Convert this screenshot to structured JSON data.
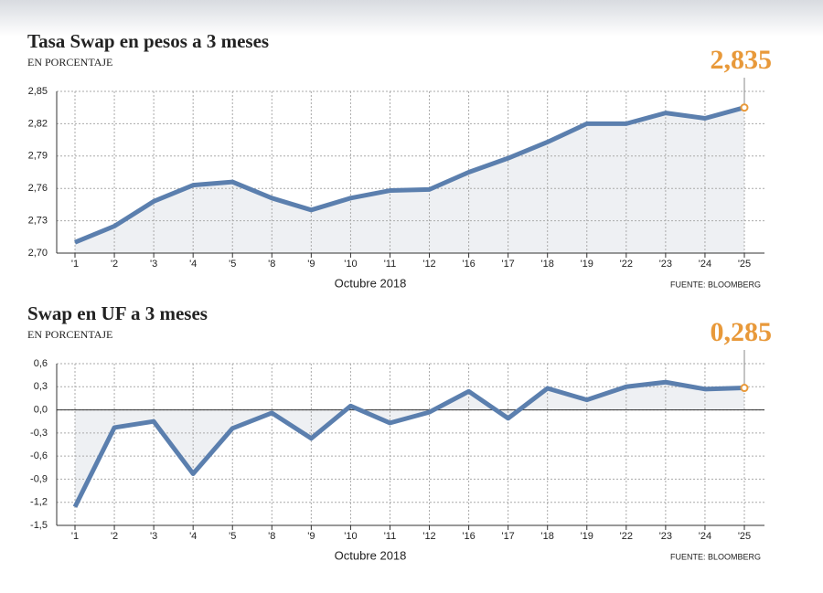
{
  "chart_data": [
    {
      "type": "line",
      "title": "Tasa Swap en pesos a 3 meses",
      "subtitle": "EN PORCENTAJE",
      "categories": [
        "'1",
        "'2",
        "'3",
        "'4",
        "'5",
        "'8",
        "'9",
        "'10",
        "'11",
        "'12",
        "'16",
        "'17",
        "'18",
        "'19",
        "'22",
        "'23",
        "'24",
        "'25"
      ],
      "values": [
        2.71,
        2.725,
        2.748,
        2.763,
        2.766,
        2.751,
        2.74,
        2.751,
        2.758,
        2.759,
        2.775,
        2.788,
        2.803,
        2.82,
        2.82,
        2.83,
        2.825,
        2.835
      ],
      "value_labels": [
        null,
        null,
        null,
        null,
        null,
        null,
        null,
        null,
        null,
        null,
        null,
        null,
        null,
        null,
        null,
        null,
        null,
        "2,835"
      ],
      "color": "#5b7fae",
      "xlabel": "Octubre 2018",
      "source": "FUENTE: BLOOMBERG",
      "ylim": [
        2.7,
        2.85
      ],
      "yticks": [
        {
          "value": 2.7,
          "label": "2,70"
        },
        {
          "value": 2.73,
          "label": "2,73"
        },
        {
          "value": 2.76,
          "label": "2,76"
        },
        {
          "value": 2.79,
          "label": "2,79"
        },
        {
          "value": 2.82,
          "label": "2,82"
        },
        {
          "value": 2.85,
          "label": "2,85"
        }
      ],
      "grid": true
    },
    {
      "type": "line",
      "title": "Swap en UF a 3 meses",
      "subtitle": "EN PORCENTAJE",
      "categories": [
        "'1",
        "'2",
        "'3",
        "'4",
        "'5",
        "'8",
        "'9",
        "'10",
        "'11",
        "'12",
        "'16",
        "'17",
        "'18",
        "'19",
        "'22",
        "'23",
        "'24",
        "'25"
      ],
      "values": [
        -1.26,
        -0.23,
        -0.15,
        -0.83,
        -0.24,
        -0.04,
        -0.37,
        0.05,
        -0.17,
        -0.03,
        0.24,
        -0.11,
        0.28,
        0.13,
        0.3,
        0.36,
        0.27,
        0.285
      ],
      "value_labels": [
        null,
        null,
        null,
        null,
        null,
        null,
        null,
        null,
        null,
        null,
        null,
        null,
        null,
        null,
        null,
        null,
        null,
        "0,285"
      ],
      "color": "#5b7fae",
      "xlabel": "Octubre 2018",
      "source": "FUENTE: BLOOMBERG",
      "ylim": [
        -1.5,
        0.6
      ],
      "yticks": [
        {
          "value": -1.5,
          "label": "-1,5"
        },
        {
          "value": -1.2,
          "label": "-1,2"
        },
        {
          "value": -0.9,
          "label": "-0,9"
        },
        {
          "value": -0.6,
          "label": "-0,6"
        },
        {
          "value": -0.3,
          "label": "-0,3"
        },
        {
          "value": 0,
          "label": "0,0"
        },
        {
          "value": 0.3,
          "label": "0,3"
        },
        {
          "value": 0.6,
          "label": "0,6"
        }
      ],
      "grid": true
    }
  ]
}
